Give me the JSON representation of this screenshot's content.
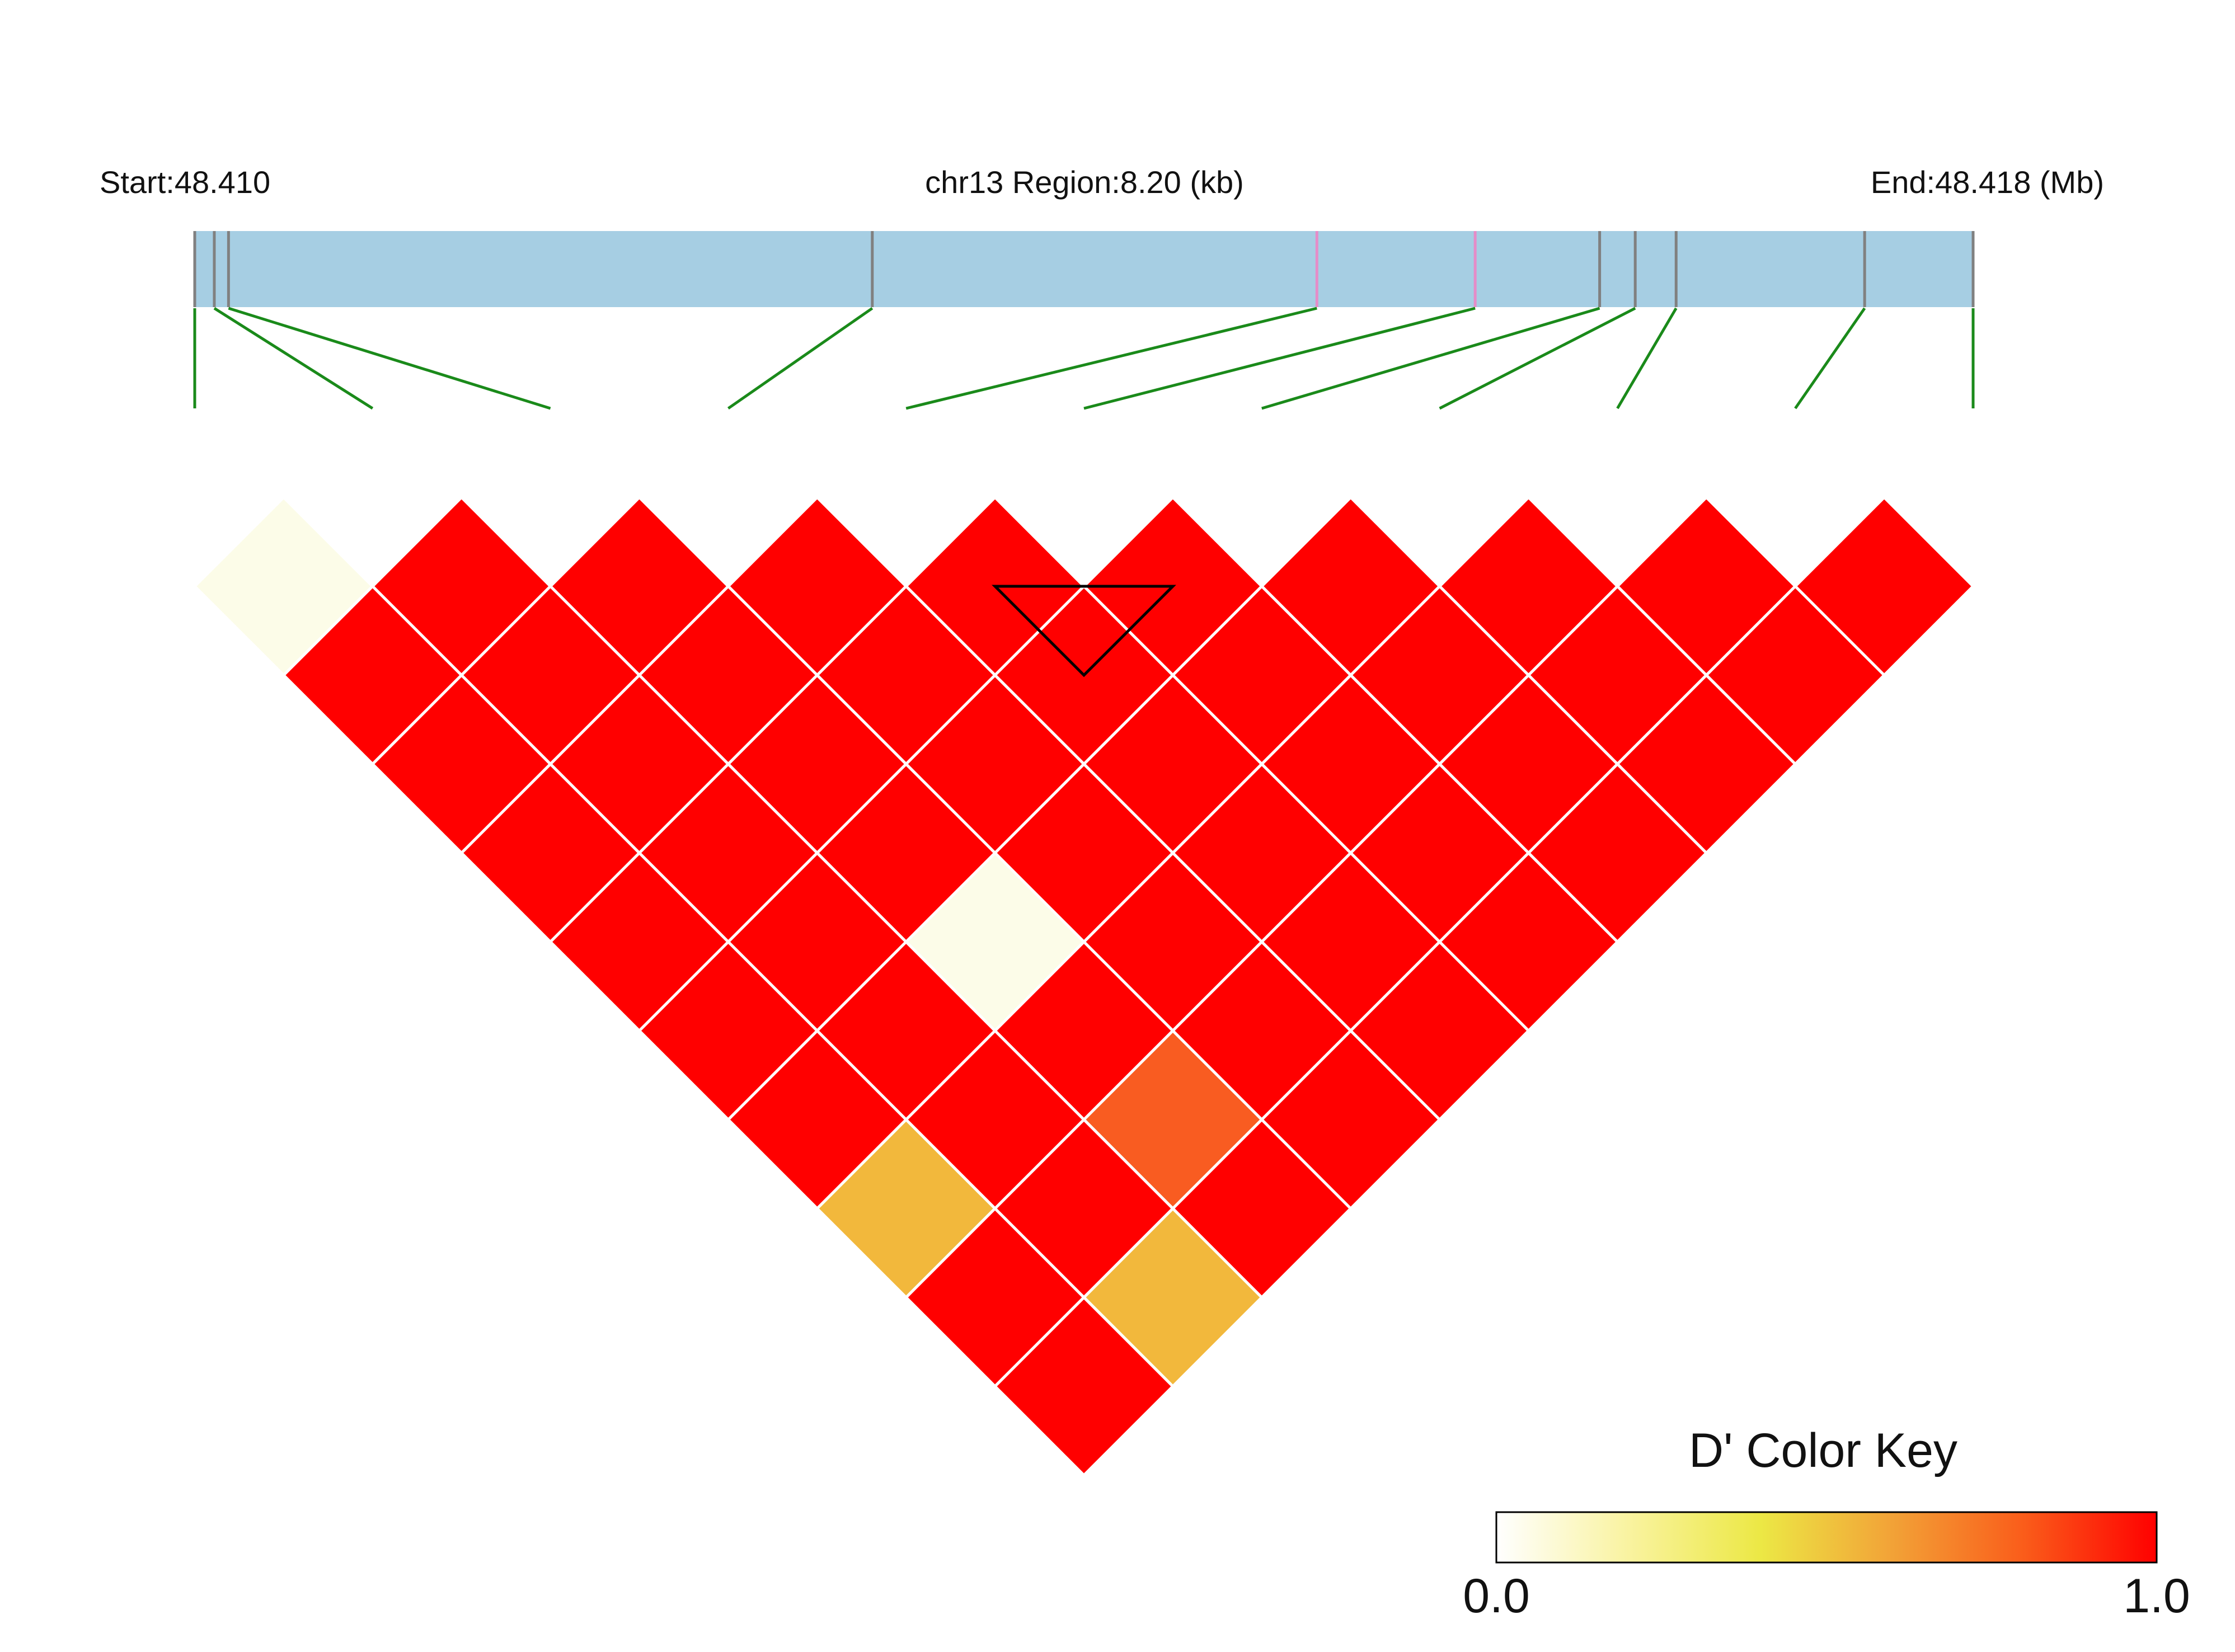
{
  "chart_data": {
    "type": "heatmap",
    "subtype": "LD triangle heatmap (D')",
    "header": {
      "start_label": "Start:48.410",
      "region_label": "chr13 Region:8.20 (kb)",
      "end_label": "End:48.418 (Mb)"
    },
    "region": {
      "chromosome": "chr13",
      "start_mb": 48.41,
      "end_mb": 48.418,
      "length_kb": 8.2
    },
    "snp_positions_fraction": [
      0.0,
      0.011,
      0.019,
      0.381,
      0.631,
      0.72,
      0.79,
      0.81,
      0.833,
      0.939,
      1.0
    ],
    "snp_marker_colors": [
      "#808080",
      "#808080",
      "#808080",
      "#808080",
      "#e58cc8",
      "#e58cc8",
      "#808080",
      "#808080",
      "#808080",
      "#808080",
      "#808080"
    ],
    "num_snps": 11,
    "d_prime": [
      [
        0.02,
        1,
        1,
        1,
        1,
        1,
        1,
        1,
        1,
        1
      ],
      [
        1,
        1,
        1,
        1,
        1,
        1,
        1,
        1,
        1
      ],
      [
        1,
        1,
        1,
        1,
        1,
        1,
        1,
        1
      ],
      [
        1,
        1,
        1,
        1,
        1,
        1,
        1
      ],
      [
        1,
        1,
        0.02,
        1,
        1,
        1
      ],
      [
        1,
        1,
        1,
        1,
        1
      ],
      [
        1,
        1,
        0.85,
        1
      ],
      [
        0.55,
        1,
        1
      ],
      [
        1,
        0.55
      ],
      [
        1
      ]
    ],
    "d_prime_note": "d_prime[k][i] is D' between SNP i and SNP i+k+1",
    "highlighted_block": {
      "snps": [
        4,
        5
      ],
      "outline_color": "#000000"
    },
    "color_key": {
      "title": "D' Color Key",
      "min_label": "0.0",
      "max_label": "1.0",
      "min": 0.0,
      "max": 1.0,
      "stops": [
        "#ffffff",
        "#f9f3a0",
        "#ece845",
        "#f2a237",
        "#fa5c1a",
        "#ff0000"
      ]
    },
    "colors": {
      "gene_track": "#a6cee3",
      "connector_lines": "#1a8a1a",
      "cell_border": "#ffffff",
      "low_cell": "#fcfce8",
      "high_cell": "#ff0000",
      "mid_cell_0_55": "#f2b83c",
      "mid_cell_0_85": "#f95c21"
    }
  }
}
